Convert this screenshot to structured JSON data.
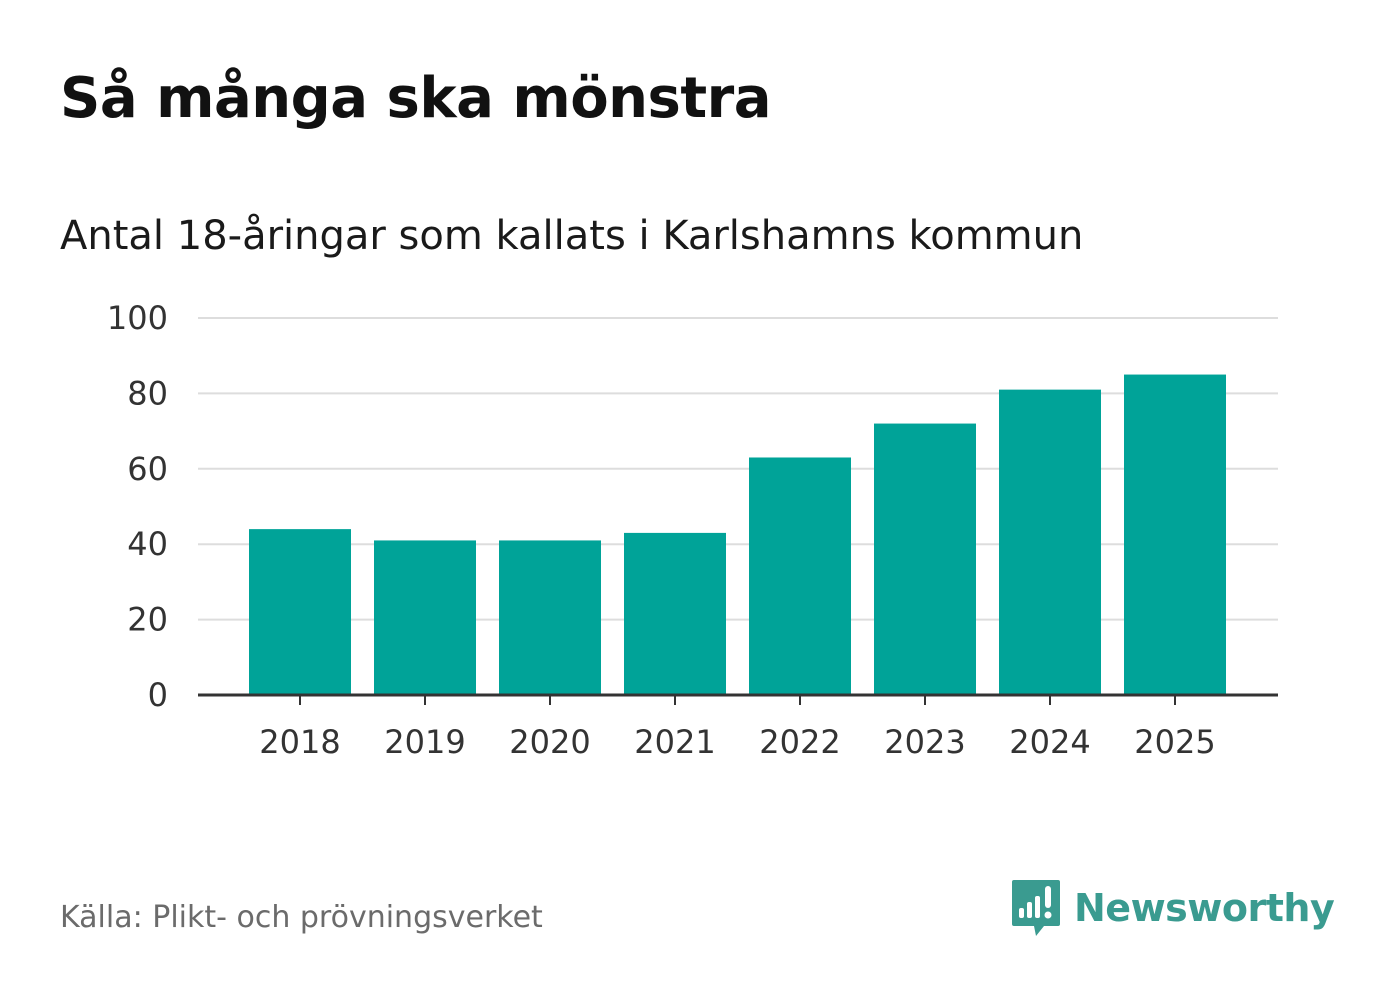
{
  "title": "Så många ska mönstra",
  "subtitle": "Antal 18-åringar som kallats i Karlshamns kommun",
  "source": "Källa: Plikt- och prövningsverket",
  "brand": {
    "name": "Newsworthy",
    "color": "#3a9b90",
    "icon": "bar-chart-speech-bubble-icon"
  },
  "colors": {
    "bar": "#00a398",
    "grid": "#dddddd",
    "axis": "#333333"
  },
  "chart_data": {
    "type": "bar",
    "title": "Så många ska mönstra",
    "subtitle": "Antal 18-åringar som kallats i Karlshamns kommun",
    "xlabel": "",
    "ylabel": "",
    "categories": [
      "2018",
      "2019",
      "2020",
      "2021",
      "2022",
      "2023",
      "2024",
      "2025"
    ],
    "values": [
      44,
      41,
      41,
      43,
      63,
      72,
      81,
      85
    ],
    "ylim": [
      0,
      100
    ],
    "yticks": [
      0,
      20,
      40,
      60,
      80,
      100
    ],
    "grid": true,
    "legend": "none"
  }
}
